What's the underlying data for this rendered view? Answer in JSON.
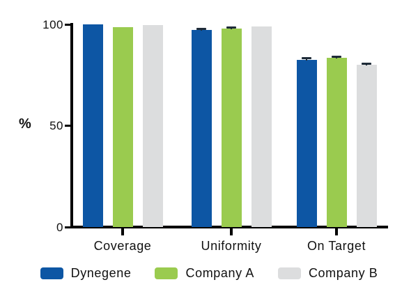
{
  "chart_data": {
    "type": "bar",
    "title": "",
    "ylabel": "%",
    "xlabel": "",
    "categories": [
      "Coverage",
      "Uniformity",
      "On Target"
    ],
    "series": [
      {
        "name": "Dynegene",
        "color": "#0d56a4",
        "values": [
          99.9,
          97.3,
          82.5
        ],
        "errors": [
          0,
          0.8,
          1.0
        ]
      },
      {
        "name": "Company A",
        "color": "#9acb4f",
        "values": [
          98.7,
          97.9,
          83.5
        ],
        "errors": [
          0,
          0.7,
          0.8
        ]
      },
      {
        "name": "Company B",
        "color": "#dcddde",
        "values": [
          99.5,
          99.0,
          80.0
        ],
        "errors": [
          0,
          0,
          0.7
        ]
      }
    ],
    "yticks": [
      {
        "value": 0,
        "label": "0"
      },
      {
        "value": 50,
        "label": "50"
      },
      {
        "value": 100,
        "label": "100"
      }
    ],
    "ylim": [
      0,
      100
    ],
    "grid": false,
    "legend_position": "bottom",
    "error_bar_color": "#1e2b38",
    "axis_color": "#000000"
  }
}
